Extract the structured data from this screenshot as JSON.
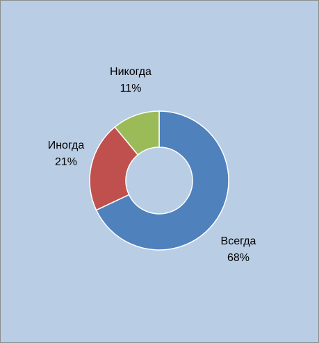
{
  "chart_data": {
    "type": "donut",
    "categories": [
      "Всегда",
      "Иногда",
      "Никогда"
    ],
    "values": [
      68,
      21,
      11
    ],
    "value_labels": [
      "68%",
      "21%",
      "11%"
    ],
    "colors": [
      "#4f81bd",
      "#c0504d",
      "#9bbb59"
    ]
  }
}
